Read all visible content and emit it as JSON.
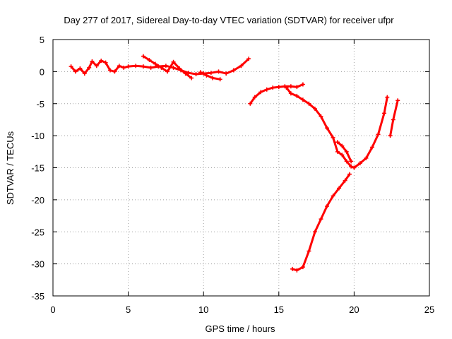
{
  "chart_data": {
    "type": "scatter",
    "title": "Day 277 of 2017, Sidereal Day-to-day VTEC variation (SDTVAR) for receiver ufpr",
    "xlabel": "GPS time / hours",
    "ylabel": "SDTVAR / TECUs",
    "xlim": [
      0,
      25
    ],
    "ylim": [
      -35,
      5
    ],
    "x_ticks": [
      "0",
      "5",
      "10",
      "15",
      "20",
      "25"
    ],
    "y_ticks": [
      "5",
      "0",
      "-5",
      "-10",
      "-15",
      "-20",
      "-25",
      "-30",
      "-35"
    ],
    "grid": true,
    "legend": "none",
    "color": "#ff0000",
    "series": [
      {
        "points": [
          [
            1.2,
            0.8
          ],
          [
            1.5,
            0.0
          ],
          [
            1.8,
            0.5
          ],
          [
            2.1,
            -0.3
          ],
          [
            2.4,
            0.6
          ],
          [
            2.6,
            1.6
          ],
          [
            2.9,
            0.9
          ],
          [
            3.2,
            1.7
          ],
          [
            3.5,
            1.4
          ],
          [
            3.8,
            0.2
          ],
          [
            4.1,
            0.0
          ],
          [
            4.4,
            0.9
          ],
          [
            4.7,
            0.6
          ],
          [
            5.0,
            0.8
          ],
          [
            5.5,
            0.9
          ],
          [
            6.0,
            0.8
          ],
          [
            6.5,
            0.6
          ],
          [
            7.0,
            0.8
          ],
          [
            7.5,
            0.9
          ],
          [
            8.0,
            0.6
          ],
          [
            8.5,
            0.2
          ],
          [
            9.0,
            -0.2
          ],
          [
            9.5,
            -0.4
          ],
          [
            10.0,
            -0.3
          ],
          [
            10.5,
            -0.2
          ],
          [
            11.0,
            0.0
          ],
          [
            11.5,
            -0.3
          ],
          [
            12.0,
            0.2
          ],
          [
            12.5,
            0.9
          ],
          [
            13.0,
            2.0
          ]
        ]
      },
      {
        "points": [
          [
            6.0,
            2.4
          ],
          [
            6.4,
            1.8
          ],
          [
            6.8,
            1.2
          ],
          [
            7.2,
            0.6
          ],
          [
            7.6,
            0.0
          ],
          [
            8.0,
            1.5
          ],
          [
            8.4,
            0.5
          ],
          [
            8.8,
            -0.3
          ],
          [
            9.2,
            -1.0
          ]
        ]
      },
      {
        "points": [
          [
            9.8,
            -0.1
          ],
          [
            10.2,
            -0.6
          ],
          [
            10.6,
            -1.0
          ],
          [
            11.1,
            -1.2
          ]
        ]
      },
      {
        "points": [
          [
            13.1,
            -5.0
          ],
          [
            13.4,
            -4.0
          ],
          [
            13.8,
            -3.2
          ],
          [
            14.2,
            -2.8
          ],
          [
            14.6,
            -2.5
          ],
          [
            15.0,
            -2.4
          ],
          [
            15.4,
            -2.3
          ],
          [
            15.8,
            -2.3
          ],
          [
            16.2,
            -2.4
          ],
          [
            16.6,
            -2.0
          ]
        ]
      },
      {
        "points": [
          [
            15.5,
            -2.5
          ],
          [
            15.8,
            -3.4
          ],
          [
            16.2,
            -3.8
          ],
          [
            16.6,
            -4.4
          ],
          [
            17.0,
            -5.0
          ],
          [
            17.4,
            -5.8
          ],
          [
            17.8,
            -7.0
          ],
          [
            18.2,
            -8.8
          ],
          [
            18.6,
            -10.3
          ],
          [
            18.9,
            -12.5
          ],
          [
            19.2,
            -13.0
          ],
          [
            19.5,
            -14.0
          ],
          [
            19.8,
            -14.8
          ],
          [
            20.0,
            -15.0
          ],
          [
            20.4,
            -14.3
          ],
          [
            20.8,
            -13.5
          ],
          [
            21.2,
            -11.8
          ],
          [
            21.6,
            -9.8
          ],
          [
            22.0,
            -6.5
          ],
          [
            22.2,
            -4.0
          ]
        ]
      },
      {
        "points": [
          [
            18.9,
            -11.0
          ],
          [
            19.2,
            -11.6
          ],
          [
            19.5,
            -12.5
          ],
          [
            19.8,
            -14.0
          ]
        ]
      },
      {
        "points": [
          [
            15.9,
            -30.8
          ],
          [
            16.2,
            -31.0
          ],
          [
            16.6,
            -30.5
          ],
          [
            17.0,
            -28.0
          ],
          [
            17.4,
            -25.0
          ],
          [
            17.8,
            -23.0
          ],
          [
            18.2,
            -21.0
          ],
          [
            18.6,
            -19.4
          ],
          [
            19.0,
            -18.2
          ],
          [
            19.4,
            -17.0
          ],
          [
            19.7,
            -16.0
          ]
        ]
      },
      {
        "points": [
          [
            22.4,
            -10.0
          ],
          [
            22.6,
            -7.5
          ],
          [
            22.9,
            -4.5
          ]
        ]
      }
    ]
  }
}
